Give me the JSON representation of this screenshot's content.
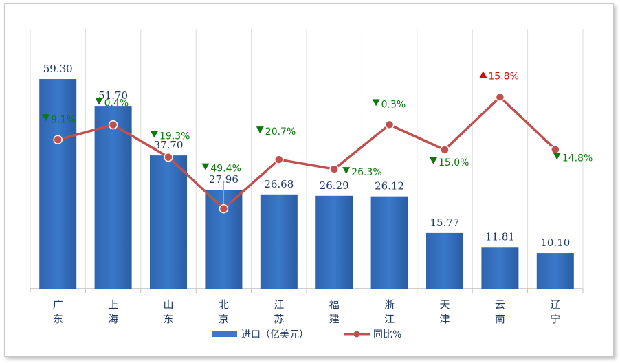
{
  "chart_data": {
    "type": "bar",
    "categories": [
      "广\n东",
      "上\n海",
      "山\n东",
      "北\n京",
      "江\n苏",
      "福\n建",
      "浙\n江",
      "天\n津",
      "云\n南",
      "辽\n宁"
    ],
    "series": [
      {
        "name": "进口（亿美元）",
        "type": "bar",
        "values": [
          59.3,
          51.7,
          37.7,
          27.96,
          26.68,
          26.29,
          26.12,
          15.77,
          11.81,
          10.1
        ],
        "value_labels": [
          "59.30",
          "51.70",
          "37.70",
          "27.96",
          "26.68",
          "26.29",
          "26.12",
          "15.77",
          "11.81",
          "10.10"
        ],
        "color": "#3a78c9"
      },
      {
        "name": "同比%",
        "type": "line",
        "values": [
          -9.1,
          -0.4,
          -19.3,
          -49.4,
          -20.7,
          -26.3,
          -0.3,
          -15.0,
          15.8,
          -14.8
        ],
        "value_labels": [
          "9.1%",
          "0.4%",
          "19.3%",
          "49.4%",
          "20.7%",
          "26.3%",
          "0.3%",
          "15.0%",
          "15.8%",
          "14.8%"
        ],
        "color": "#c0504d"
      }
    ],
    "up_color": "#e00000",
    "down_color": "#0a7a0a",
    "grid": true,
    "legend": "bottom"
  }
}
